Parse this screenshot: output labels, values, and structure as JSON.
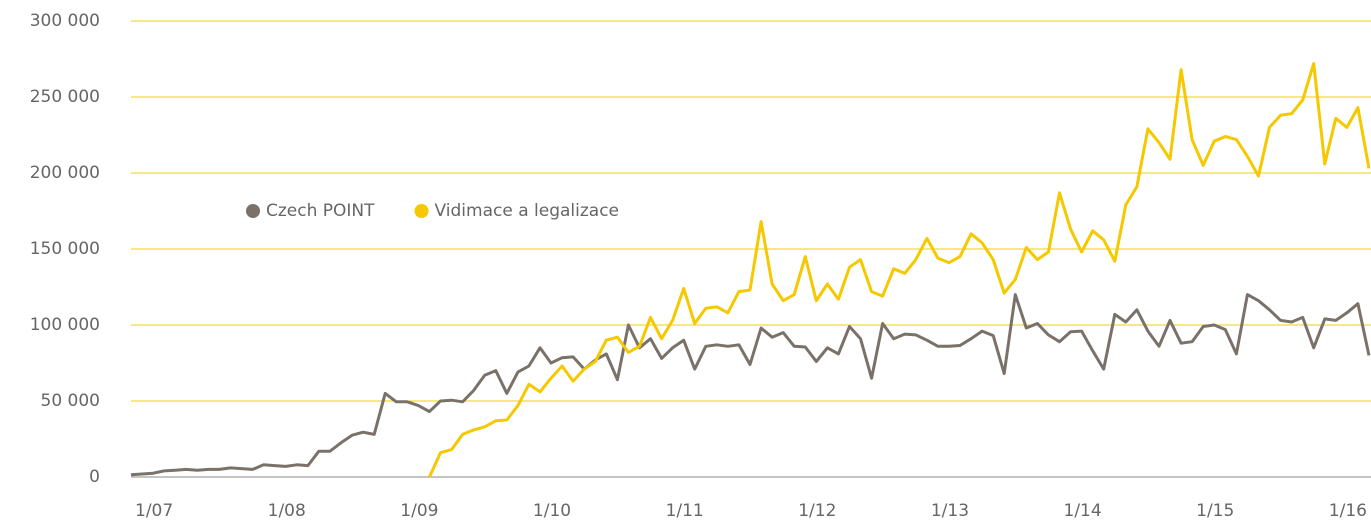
{
  "chart_data": {
    "type": "line",
    "categories": [
      "1/07",
      null,
      null,
      null,
      null,
      null,
      null,
      null,
      null,
      null,
      null,
      null,
      "1/08",
      null,
      null,
      null,
      null,
      null,
      null,
      null,
      null,
      null,
      null,
      null,
      "1/09",
      null,
      null,
      null,
      null,
      null,
      null,
      null,
      null,
      null,
      null,
      null,
      "1/10",
      null,
      null,
      null,
      null,
      null,
      null,
      null,
      null,
      null,
      null,
      null,
      "1/11",
      null,
      null,
      null,
      null,
      null,
      null,
      null,
      null,
      null,
      null,
      null,
      "1/12",
      null,
      null,
      null,
      null,
      null,
      null,
      null,
      null,
      null,
      null,
      null,
      "1/13",
      null,
      null,
      null,
      null,
      null,
      null,
      null,
      null,
      null,
      null,
      null,
      "1/14",
      null,
      null,
      null,
      null,
      null,
      null,
      null,
      null,
      null,
      null,
      null,
      "1/15",
      null,
      null,
      null,
      null,
      null,
      null,
      null,
      null,
      null,
      null,
      null,
      "1/16",
      null,
      null,
      null,
      null
    ],
    "series": [
      {
        "name": "Czech POINT",
        "color": "#7a7268",
        "values": [
          1500,
          2000,
          2500,
          4000,
          4500,
          5000,
          4500,
          5000,
          5000,
          6000,
          5500,
          5000,
          8000,
          7500,
          7000,
          8000,
          7500,
          17000,
          17000,
          22500,
          27500,
          29500,
          28000,
          55000,
          49500,
          49500,
          47000,
          43000,
          50000,
          50500,
          49500,
          57000,
          67000,
          70000,
          55000,
          69000,
          73000,
          85000,
          75000,
          78500,
          79000,
          71000,
          77000,
          81000,
          64000,
          100000,
          85000,
          91000,
          78000,
          85000,
          90000,
          71000,
          86000,
          87000,
          86000,
          87000,
          74000,
          98000,
          92000,
          95000,
          86000,
          85500,
          76000,
          85000,
          81000,
          99000,
          91000,
          65000,
          101000,
          91000,
          94000,
          93500,
          90000,
          86000,
          86000,
          86500,
          91000,
          96000,
          93000,
          68000,
          120000,
          98000,
          101000,
          93500,
          89000,
          95500,
          96000,
          83000,
          71000,
          107000,
          102000,
          110000,
          96000,
          86000,
          103000,
          88000,
          89000,
          99000,
          100000,
          97000,
          81000,
          120000,
          116000,
          110000,
          103000,
          102000,
          105000,
          85000,
          104000,
          103000,
          108000,
          114000,
          80000
        ]
      },
      {
        "name": "Vidimace a legalizace",
        "color": "#f5c800",
        "values": [
          null,
          null,
          null,
          null,
          null,
          null,
          null,
          null,
          null,
          null,
          null,
          null,
          null,
          null,
          null,
          null,
          null,
          null,
          null,
          null,
          null,
          null,
          null,
          null,
          null,
          null,
          null,
          0,
          16000,
          18000,
          28000,
          31000,
          33000,
          37000,
          37500,
          47000,
          61000,
          56000,
          65000,
          73000,
          63000,
          71000,
          76000,
          90000,
          92000,
          82000,
          86000,
          105000,
          91000,
          103000,
          124000,
          101000,
          111000,
          112000,
          108000,
          122000,
          123000,
          168000,
          127000,
          116000,
          120000,
          145000,
          116000,
          127000,
          117000,
          138000,
          143000,
          122000,
          119000,
          137000,
          134000,
          143000,
          157000,
          144000,
          141000,
          145000,
          160000,
          154000,
          143000,
          121000,
          130000,
          151000,
          143000,
          148000,
          187000,
          163000,
          148000,
          162000,
          156000,
          142000,
          179000,
          191000,
          229000,
          220000,
          209000,
          268000,
          222000,
          205000,
          221000,
          224000,
          222000,
          211000,
          198000,
          230000,
          238000,
          239000,
          248000,
          272000,
          206000,
          236000,
          230000,
          243000,
          203000
        ]
      }
    ],
    "ylim": [
      0,
      300000
    ],
    "yticks": [
      0,
      {
        "value": 50000,
        "label": "50 000"
      },
      {
        "value": 100000,
        "label": "100 000"
      },
      {
        "value": 150000,
        "label": "150 000"
      },
      {
        "value": 200000,
        "label": "200 000"
      },
      {
        "value": 250000,
        "label": "250 000"
      },
      {
        "value": 300000,
        "label": "300 000"
      }
    ],
    "grid": true,
    "grid_color": "#f0d000",
    "legend": "center-left"
  }
}
